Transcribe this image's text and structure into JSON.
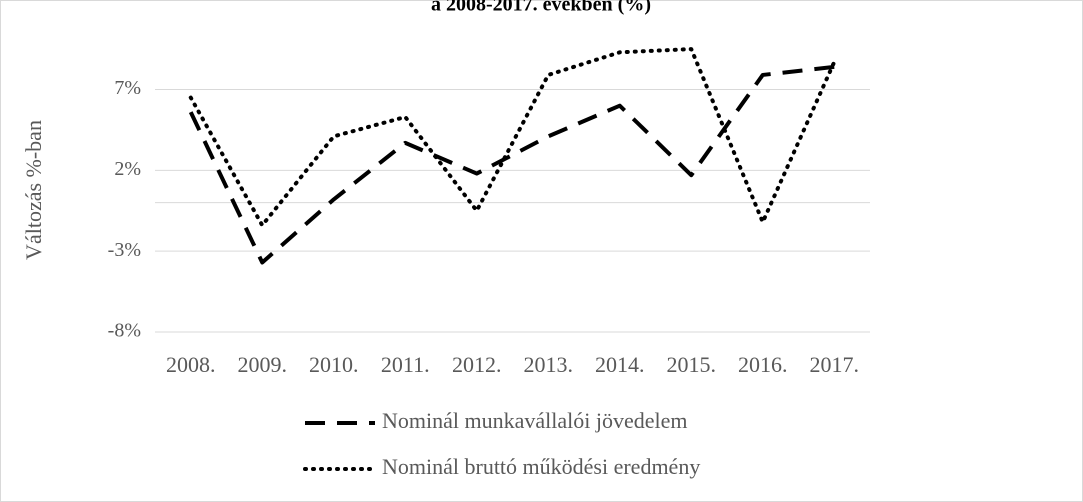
{
  "chart_data": {
    "type": "line",
    "title": "a 2008-2017. években (%)",
    "y_label": "Változás %-ban",
    "categories": [
      "2008.",
      "2009.",
      "2010.",
      "2011.",
      "2012.",
      "2013.",
      "2014.",
      "2015.",
      "2016.",
      "2017."
    ],
    "series": [
      {
        "name": "Nominál munkavállalói jövedelem",
        "color": "#000000",
        "style": "dashed",
        "values": [
          5.6,
          -3.7,
          0.2,
          3.7,
          1.8,
          4.1,
          6.0,
          1.7,
          7.9,
          8.4
        ]
      },
      {
        "name": "Nominál bruttó működési eredmény",
        "color": "#000000",
        "style": "dotted",
        "values": [
          6.5,
          -1.4,
          4.1,
          5.3,
          -0.5,
          7.9,
          9.3,
          9.5,
          -1.2,
          8.7
        ]
      }
    ],
    "ylim": [
      -8,
      10
    ],
    "yticks": [
      {
        "value": -8,
        "label": "-8%"
      },
      {
        "value": -3,
        "label": "-3%"
      },
      {
        "value": 2,
        "label": "2%"
      },
      {
        "value": 7,
        "label": "7%"
      }
    ],
    "grid": true,
    "legend": "bottom"
  }
}
